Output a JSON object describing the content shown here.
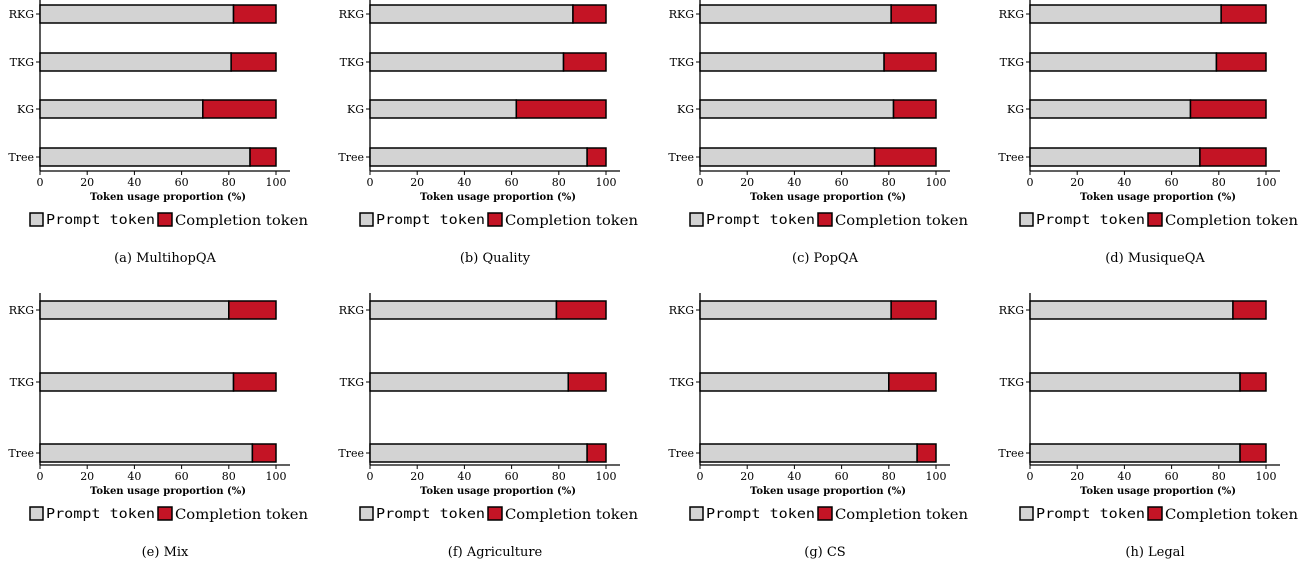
{
  "legend": {
    "prompt_label": "Prompt token",
    "completion_label": "Completion token",
    "prompt_color": "#d3d3d3",
    "completion_color": "#c41425"
  },
  "chart_data": [
    {
      "type": "bar",
      "orientation": "horizontal",
      "stacked": true,
      "caption": "(a) MultihopQA",
      "xlabel": "Token usage proportion (%)",
      "xlim": [
        0,
        100
      ],
      "xticks": [
        "0",
        "20",
        "40",
        "60",
        "80",
        "100"
      ],
      "categories": [
        "RKG",
        "TKG",
        "KG",
        "Tree"
      ],
      "series": [
        {
          "name": "Prompt token",
          "values": [
            82,
            81,
            69,
            89
          ]
        },
        {
          "name": "Completion token",
          "values": [
            18,
            19,
            31,
            11
          ]
        }
      ]
    },
    {
      "type": "bar",
      "orientation": "horizontal",
      "stacked": true,
      "caption": "(b) Quality",
      "xlabel": "Token usage proportion (%)",
      "xlim": [
        0,
        100
      ],
      "xticks": [
        "0",
        "20",
        "40",
        "60",
        "80",
        "100"
      ],
      "categories": [
        "RKG",
        "TKG",
        "KG",
        "Tree"
      ],
      "series": [
        {
          "name": "Prompt token",
          "values": [
            86,
            82,
            62,
            92
          ]
        },
        {
          "name": "Completion token",
          "values": [
            14,
            18,
            38,
            8
          ]
        }
      ]
    },
    {
      "type": "bar",
      "orientation": "horizontal",
      "stacked": true,
      "caption": "(c) PopQA",
      "xlabel": "Token usage proportion (%)",
      "xlim": [
        0,
        100
      ],
      "xticks": [
        "0",
        "20",
        "40",
        "60",
        "80",
        "100"
      ],
      "categories": [
        "RKG",
        "TKG",
        "KG",
        "Tree"
      ],
      "series": [
        {
          "name": "Prompt token",
          "values": [
            81,
            78,
            82,
            74
          ]
        },
        {
          "name": "Completion token",
          "values": [
            19,
            22,
            18,
            26
          ]
        }
      ]
    },
    {
      "type": "bar",
      "orientation": "horizontal",
      "stacked": true,
      "caption": "(d) MusiqueQA",
      "xlabel": "Token usage proportion (%)",
      "xlim": [
        0,
        100
      ],
      "xticks": [
        "0",
        "20",
        "40",
        "60",
        "80",
        "100"
      ],
      "categories": [
        "RKG",
        "TKG",
        "KG",
        "Tree"
      ],
      "series": [
        {
          "name": "Prompt token",
          "values": [
            81,
            79,
            68,
            72
          ]
        },
        {
          "name": "Completion token",
          "values": [
            19,
            21,
            32,
            28
          ]
        }
      ]
    },
    {
      "type": "bar",
      "orientation": "horizontal",
      "stacked": true,
      "caption": "(e) Mix",
      "xlabel": "Token usage proportion (%)",
      "xlim": [
        0,
        100
      ],
      "xticks": [
        "0",
        "20",
        "40",
        "60",
        "80",
        "100"
      ],
      "categories": [
        "RKG",
        "TKG",
        "Tree"
      ],
      "series": [
        {
          "name": "Prompt token",
          "values": [
            80,
            82,
            90
          ]
        },
        {
          "name": "Completion token",
          "values": [
            20,
            18,
            10
          ]
        }
      ]
    },
    {
      "type": "bar",
      "orientation": "horizontal",
      "stacked": true,
      "caption": "(f) Agriculture",
      "xlabel": "Token usage proportion (%)",
      "xlim": [
        0,
        100
      ],
      "xticks": [
        "0",
        "20",
        "40",
        "60",
        "80",
        "100"
      ],
      "categories": [
        "RKG",
        "TKG",
        "Tree"
      ],
      "series": [
        {
          "name": "Prompt token",
          "values": [
            79,
            84,
            92
          ]
        },
        {
          "name": "Completion token",
          "values": [
            21,
            16,
            8
          ]
        }
      ]
    },
    {
      "type": "bar",
      "orientation": "horizontal",
      "stacked": true,
      "caption": "(g) CS",
      "xlabel": "Token usage proportion (%)",
      "xlim": [
        0,
        100
      ],
      "xticks": [
        "0",
        "20",
        "40",
        "60",
        "80",
        "100"
      ],
      "categories": [
        "RKG",
        "TKG",
        "Tree"
      ],
      "series": [
        {
          "name": "Prompt token",
          "values": [
            81,
            80,
            92
          ]
        },
        {
          "name": "Completion token",
          "values": [
            19,
            20,
            8
          ]
        }
      ]
    },
    {
      "type": "bar",
      "orientation": "horizontal",
      "stacked": true,
      "caption": "(h) Legal",
      "xlabel": "Token usage proportion (%)",
      "xlim": [
        0,
        100
      ],
      "xticks": [
        "0",
        "20",
        "40",
        "60",
        "80",
        "100"
      ],
      "categories": [
        "RKG",
        "TKG",
        "Tree"
      ],
      "series": [
        {
          "name": "Prompt token",
          "values": [
            86,
            89,
            89
          ]
        },
        {
          "name": "Completion token",
          "values": [
            14,
            11,
            11
          ]
        }
      ]
    }
  ]
}
